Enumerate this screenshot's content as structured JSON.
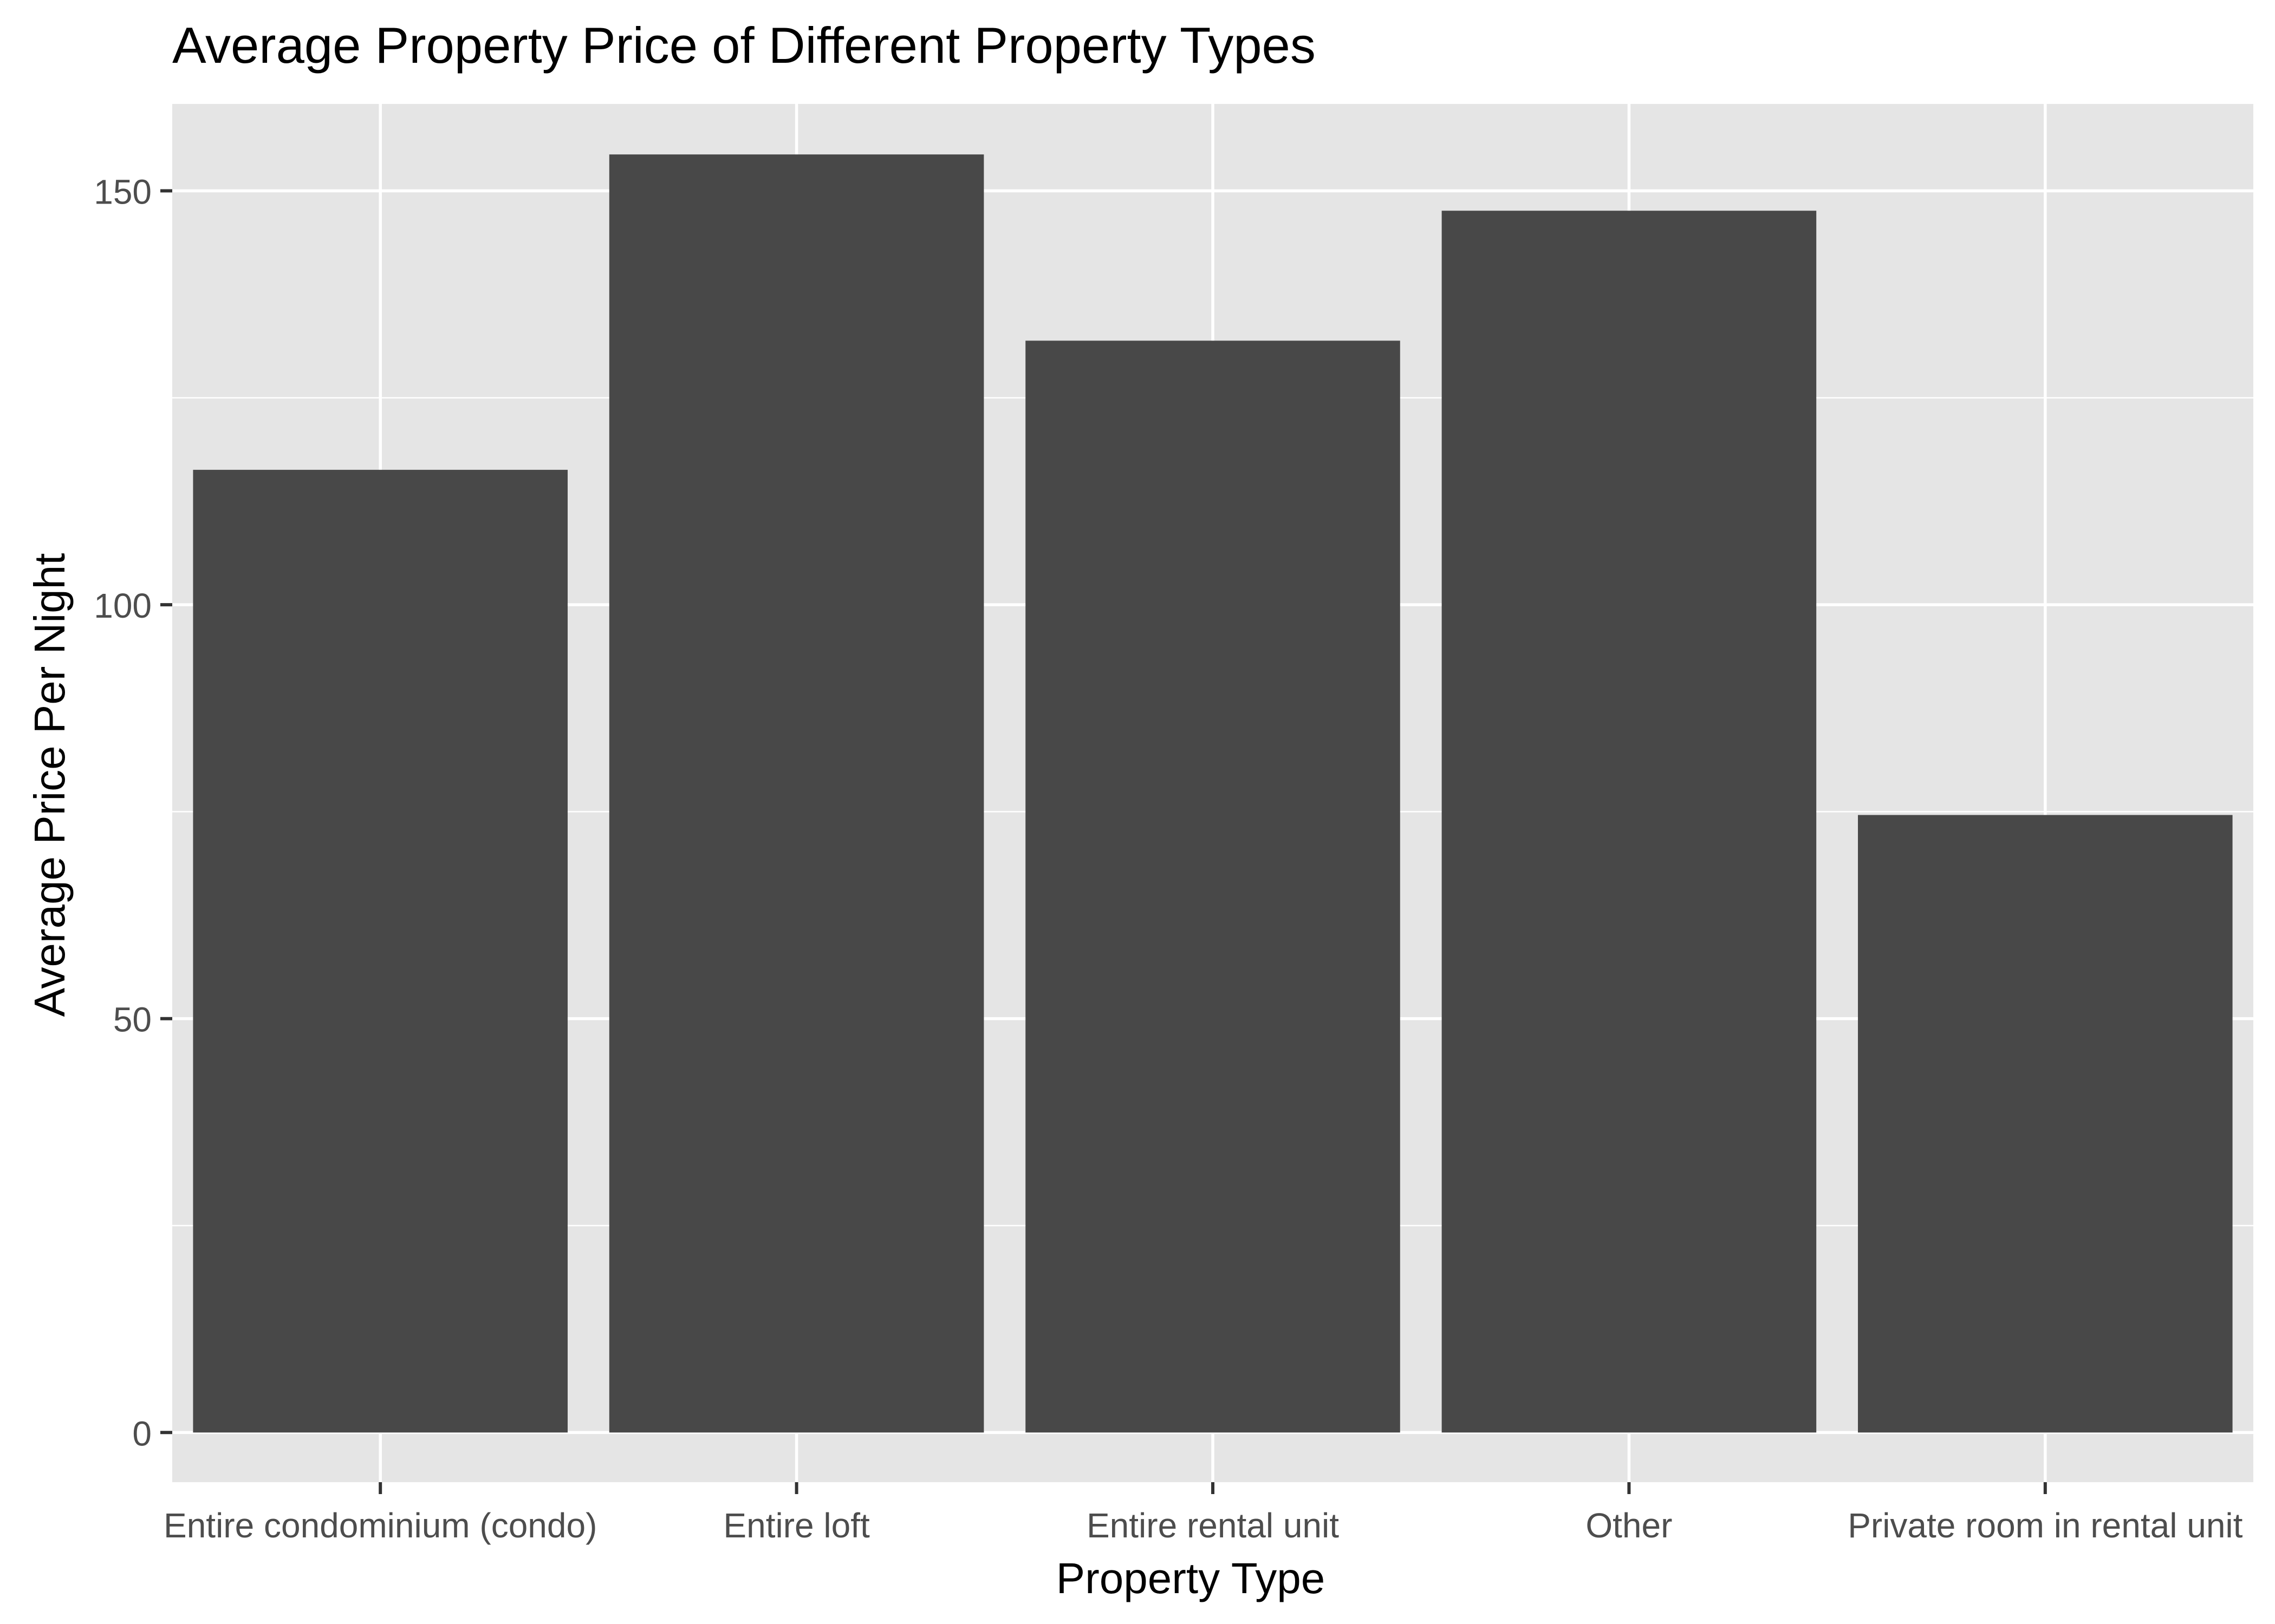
{
  "chart_data": {
    "type": "bar",
    "title": "Average Property Price of Different Property Types",
    "xlabel": "Property Type",
    "ylabel": "Average Price Per Night",
    "categories": [
      "Entire condominium (condo)",
      "Entire loft",
      "Entire rental unit",
      "Other",
      "Private room in rental unit"
    ],
    "values": [
      116.3,
      154.4,
      131.9,
      147.6,
      74.6
    ],
    "ylim": [
      -6,
      160.5
    ],
    "yticks": [
      0,
      50,
      100,
      150
    ],
    "grid": true,
    "colors": {
      "panel": "#e5e5e5",
      "bar": "#484848",
      "grid": "#ffffff"
    }
  }
}
